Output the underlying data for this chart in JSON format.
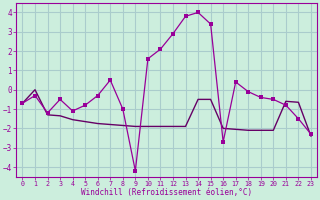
{
  "xlabel": "Windchill (Refroidissement éolien,°C)",
  "background_color": "#cceedd",
  "grid_color": "#aacccc",
  "line_color": "#990099",
  "line2_color": "#660066",
  "xlim": [
    -0.5,
    23.5
  ],
  "ylim": [
    -4.5,
    4.5
  ],
  "yticks": [
    -4,
    -3,
    -2,
    -1,
    0,
    1,
    2,
    3,
    4
  ],
  "xticks": [
    0,
    1,
    2,
    3,
    4,
    5,
    6,
    7,
    8,
    9,
    10,
    11,
    12,
    13,
    14,
    15,
    16,
    17,
    18,
    19,
    20,
    21,
    22,
    23
  ],
  "line1_x": [
    0,
    1,
    2,
    3,
    4,
    5,
    6,
    7,
    8,
    9,
    10,
    11,
    12,
    13,
    14,
    15,
    16,
    17,
    18,
    19,
    20,
    21,
    22,
    23
  ],
  "line1_y": [
    -0.7,
    -0.3,
    -1.2,
    -0.5,
    -1.1,
    -0.8,
    -0.3,
    0.5,
    -1.0,
    -4.2,
    1.6,
    2.1,
    2.9,
    3.8,
    4.0,
    3.4,
    -2.7,
    0.4,
    -0.1,
    -0.4,
    -0.5,
    -0.8,
    -1.5,
    -2.3
  ],
  "line2_x": [
    0,
    1,
    2,
    3,
    4,
    5,
    6,
    7,
    8,
    9,
    10,
    11,
    12,
    13,
    14,
    15,
    16,
    17,
    18,
    19,
    20,
    21,
    22,
    23
  ],
  "line2_y": [
    -0.7,
    0.0,
    -1.3,
    -1.35,
    -1.55,
    -1.65,
    -1.75,
    -1.8,
    -1.85,
    -1.9,
    -1.9,
    -1.9,
    -1.9,
    -1.9,
    -0.5,
    -0.5,
    -2.0,
    -2.05,
    -2.1,
    -2.1,
    -2.1,
    -0.6,
    -0.65,
    -2.4
  ]
}
